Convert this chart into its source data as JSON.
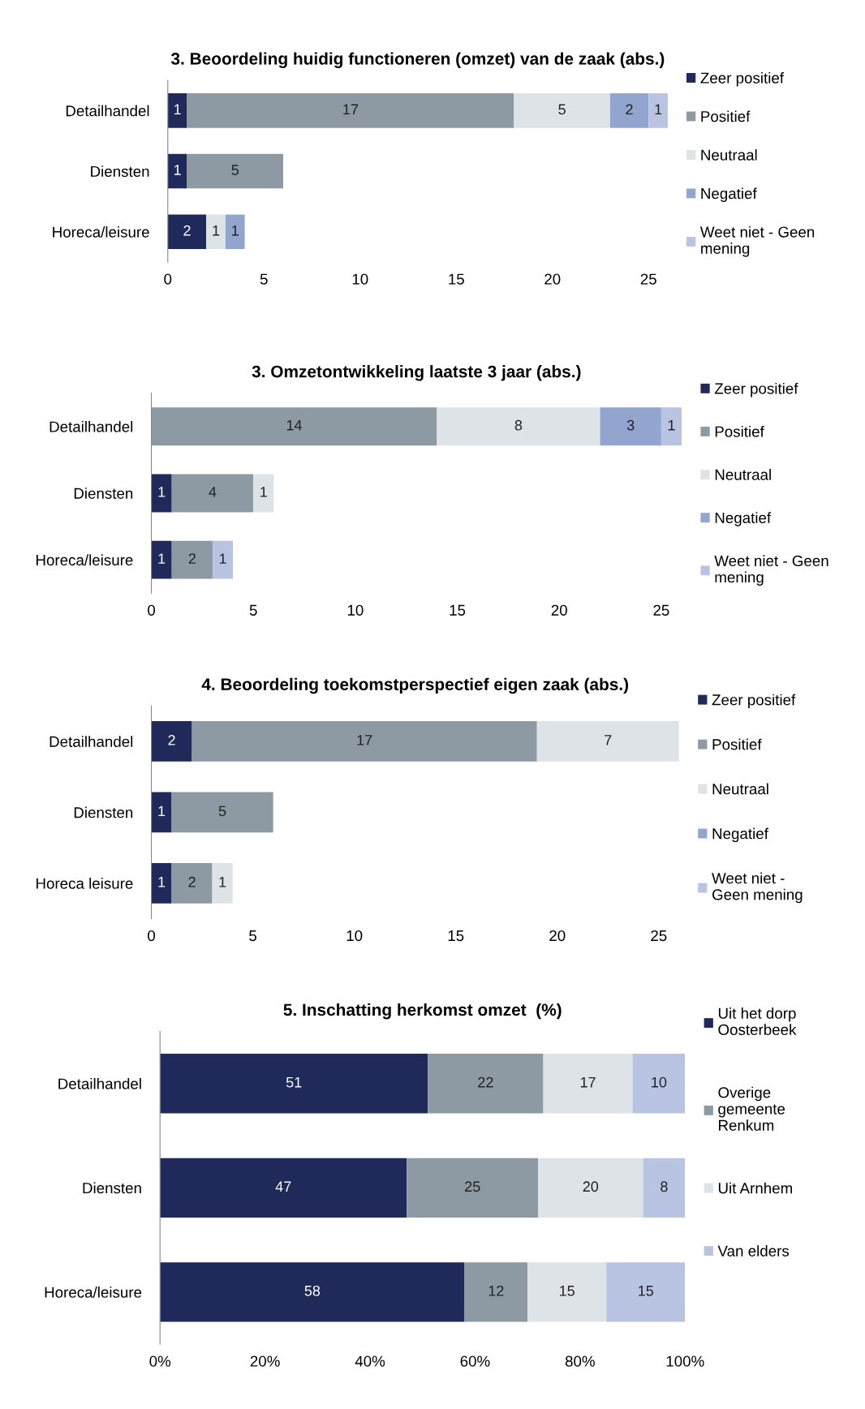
{
  "chart_data": [
    {
      "type": "bar",
      "orientation": "horizontal",
      "stacked": true,
      "title": "3. Beoordeling huidig functioneren (omzet) van de zaak (abs.)",
      "categories": [
        "Detailhandel",
        "Diensten",
        "Horeca/leisure"
      ],
      "series": [
        {
          "name": "Zeer positief",
          "color": "#1f2a5a",
          "values": [
            1,
            1,
            2
          ]
        },
        {
          "name": "Positief",
          "color": "#8d99a3",
          "values": [
            17,
            5,
            null
          ]
        },
        {
          "name": "Neutraal",
          "color": "#dde3e6",
          "values": [
            5,
            null,
            1
          ]
        },
        {
          "name": "Negatief",
          "color": "#92a5cf",
          "values": [
            2,
            null,
            1
          ]
        },
        {
          "name": "Weet niet - Geen\nmening",
          "color": "#b8c4e2",
          "values": [
            1,
            null,
            null
          ]
        }
      ],
      "xlim": [
        0,
        26
      ],
      "xticks": [
        0,
        5,
        10,
        15,
        20,
        25
      ],
      "data_labels": true,
      "legend": "right",
      "grid": false
    },
    {
      "type": "bar",
      "orientation": "horizontal",
      "stacked": true,
      "title": "3. Omzetontwikkeling laatste 3 jaar (abs.)",
      "categories": [
        "Detailhandel",
        "Diensten",
        "Horeca/leisure"
      ],
      "series": [
        {
          "name": "Zeer positief",
          "color": "#1f2a5a",
          "values": [
            null,
            1,
            1
          ]
        },
        {
          "name": "Positief",
          "color": "#8d99a3",
          "values": [
            14,
            4,
            2
          ]
        },
        {
          "name": "Neutraal",
          "color": "#dde3e6",
          "values": [
            8,
            1,
            null
          ]
        },
        {
          "name": "Negatief",
          "color": "#92a5cf",
          "values": [
            3,
            null,
            null
          ]
        },
        {
          "name": "Weet niet - Geen\nmening",
          "color": "#b8c4e2",
          "values": [
            1,
            null,
            1
          ]
        }
      ],
      "xlim": [
        0,
        26
      ],
      "xticks": [
        0,
        5,
        10,
        15,
        20,
        25
      ],
      "data_labels": true,
      "legend": "right",
      "grid": false
    },
    {
      "type": "bar",
      "orientation": "horizontal",
      "stacked": true,
      "title": "4. Beoordeling toekomstperspectief eigen zaak (abs.)",
      "categories": [
        "Detailhandel",
        "Diensten",
        "Horeca leisure"
      ],
      "series": [
        {
          "name": "Zeer positief",
          "color": "#1f2a5a",
          "values": [
            2,
            1,
            1
          ]
        },
        {
          "name": "Positief",
          "color": "#8d99a3",
          "values": [
            17,
            5,
            2
          ]
        },
        {
          "name": "Neutraal",
          "color": "#dde3e6",
          "values": [
            7,
            null,
            1
          ]
        },
        {
          "name": "Negatief",
          "color": "#92a5cf",
          "values": [
            null,
            null,
            null
          ]
        },
        {
          "name": "Weet niet -\nGeen mening",
          "color": "#b8c4e2",
          "values": [
            null,
            null,
            null
          ]
        }
      ],
      "xlim": [
        0,
        26
      ],
      "xticks": [
        0,
        5,
        10,
        15,
        20,
        25
      ],
      "data_labels": true,
      "legend": "right",
      "grid": false
    },
    {
      "type": "bar",
      "orientation": "horizontal",
      "stacked": true,
      "title": "5. Inschatting herkomst omzet  (%)",
      "categories": [
        "Detailhandel",
        "Diensten",
        "Horeca/leisure"
      ],
      "series": [
        {
          "name": "Uit het dorp\nOosterbeek",
          "color": "#1f2a5a",
          "values": [
            51,
            47,
            58
          ]
        },
        {
          "name": "Overige\ngemeente\nRenkum",
          "color": "#8d99a3",
          "values": [
            22,
            25,
            12
          ]
        },
        {
          "name": "Uit Arnhem",
          "color": "#dde3e6",
          "values": [
            17,
            20,
            15
          ]
        },
        {
          "name": "Van elders",
          "color": "#b8c4e2",
          "values": [
            10,
            8,
            15
          ]
        }
      ],
      "xlim": [
        0,
        100
      ],
      "xticks": [
        {
          "value": 0,
          "label": "0%"
        },
        {
          "value": 20,
          "label": "20%"
        },
        {
          "value": 40,
          "label": "40%"
        },
        {
          "value": 60,
          "label": "60%"
        },
        {
          "value": 80,
          "label": "80%"
        },
        {
          "value": 100,
          "label": "100%"
        }
      ],
      "data_labels": true,
      "legend": "right",
      "grid": false
    }
  ]
}
